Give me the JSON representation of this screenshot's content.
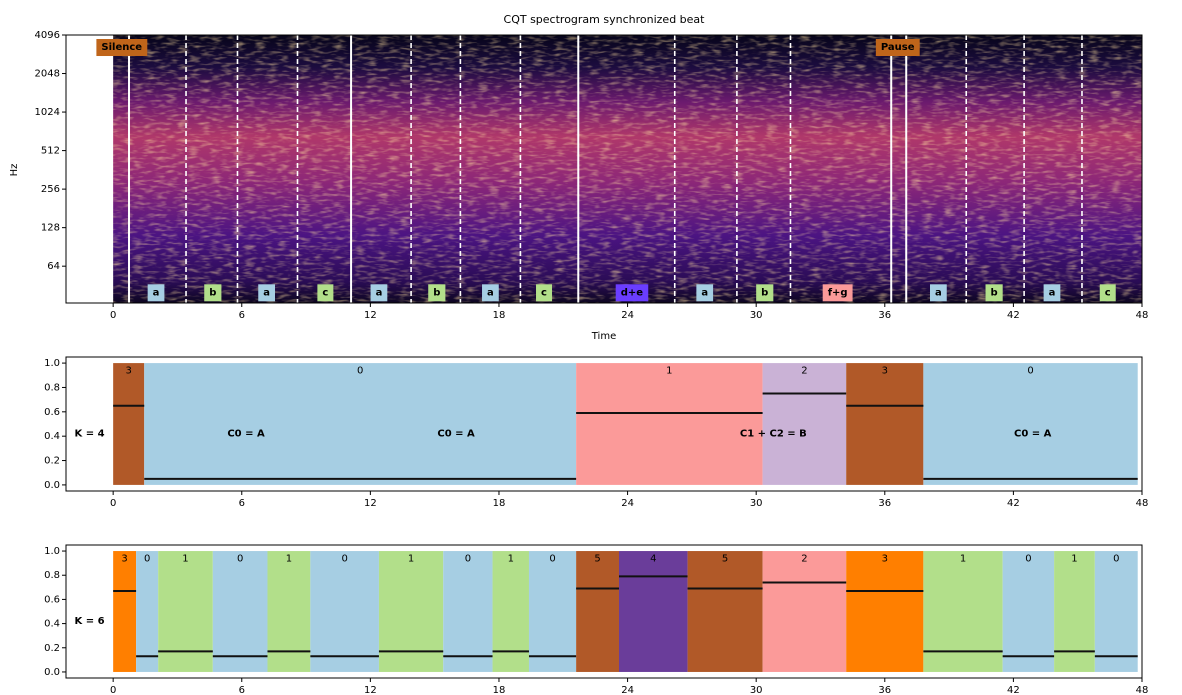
{
  "chart_data": [
    {
      "type": "spectrogram",
      "title": "CQT spectrogram synchronized beat",
      "xlabel": "Time",
      "ylabel": "Hz",
      "xlim": [
        -2.2,
        48.0
      ],
      "xticks": [
        0,
        6,
        12,
        18,
        24,
        30,
        36,
        42,
        48
      ],
      "ylim": [
        33,
        4096
      ],
      "yticks": [
        64,
        128,
        256,
        512,
        1024,
        2048,
        4096
      ],
      "log_scale_y": true,
      "solid_lines": [
        0.74,
        11.1,
        21.7,
        36.3,
        37.0
      ],
      "dashed_lines": [
        3.4,
        5.8,
        8.6,
        13.9,
        16.2,
        19.0,
        26.2,
        29.1,
        31.6,
        39.8,
        42.5,
        45.2
      ],
      "annotations": [
        {
          "text": "Silence",
          "x": 0.4,
          "y": 3300,
          "color": "#c0651a",
          "text_color": "#111111"
        },
        {
          "text": "Pause",
          "x": 36.6,
          "y": 3300,
          "color": "#c0651a",
          "text_color": "#111111"
        },
        {
          "text": "a",
          "x": 2.0,
          "y": 40,
          "color": "#a6cee3",
          "text_color": "#111111"
        },
        {
          "text": "b",
          "x": 4.65,
          "y": 40,
          "color": "#b2df8a",
          "text_color": "#111111"
        },
        {
          "text": "a",
          "x": 7.16,
          "y": 40,
          "color": "#a6cee3",
          "text_color": "#111111"
        },
        {
          "text": "c",
          "x": 9.9,
          "y": 40,
          "color": "#b2df8a",
          "text_color": "#111111"
        },
        {
          "text": "a",
          "x": 12.4,
          "y": 40,
          "color": "#a6cee3",
          "text_color": "#111111"
        },
        {
          "text": "b",
          "x": 15.1,
          "y": 40,
          "color": "#b2df8a",
          "text_color": "#111111"
        },
        {
          "text": "a",
          "x": 17.6,
          "y": 40,
          "color": "#a6cee3",
          "text_color": "#111111"
        },
        {
          "text": "c",
          "x": 20.1,
          "y": 40,
          "color": "#b2df8a",
          "text_color": "#111111"
        },
        {
          "text": "d+e",
          "x": 24.2,
          "y": 40,
          "color": "#6a3dff",
          "text_color": "#ffffff"
        },
        {
          "text": "a",
          "x": 27.6,
          "y": 40,
          "color": "#a6cee3",
          "text_color": "#111111"
        },
        {
          "text": "b",
          "x": 30.4,
          "y": 40,
          "color": "#b2df8a",
          "text_color": "#111111"
        },
        {
          "text": "f+g",
          "x": 33.8,
          "y": 40,
          "color": "#fb9a99",
          "text_color": "#111111"
        },
        {
          "text": "a",
          "x": 38.5,
          "y": 40,
          "color": "#a6cee3",
          "text_color": "#111111"
        },
        {
          "text": "b",
          "x": 41.1,
          "y": 40,
          "color": "#b2df8a",
          "text_color": "#111111"
        },
        {
          "text": "a",
          "x": 43.8,
          "y": 40,
          "color": "#a6cee3",
          "text_color": "#111111"
        },
        {
          "text": "c",
          "x": 46.4,
          "y": 40,
          "color": "#b2df8a",
          "text_color": "#111111"
        }
      ]
    },
    {
      "type": "segments",
      "xlim": [
        -2.2,
        48.0
      ],
      "xticks": [
        0,
        6,
        12,
        18,
        24,
        30,
        36,
        42,
        48
      ],
      "ylim": [
        -0.05,
        1.05
      ],
      "yticks": [
        {
          "value": 0,
          "label": "0.0"
        },
        {
          "value": 0.2,
          "label": "0.2"
        },
        {
          "value": 0.4,
          "label": "0.4"
        },
        {
          "value": 0.6,
          "label": "0.6"
        },
        {
          "value": 0.8,
          "label": "0.8"
        },
        {
          "value": 1,
          "label": "1.0"
        }
      ],
      "segments": [
        {
          "start": 0,
          "end": 1.45,
          "label": "3",
          "color": "#b15928",
          "level": 0.65
        },
        {
          "start": 1.45,
          "end": 21.6,
          "label": "0",
          "color": "#a6cee3",
          "level": 0.05
        },
        {
          "start": 21.6,
          "end": 30.3,
          "label": "1",
          "color": "#fb9a99",
          "level": 0.59
        },
        {
          "start": 30.3,
          "end": 34.2,
          "label": "2",
          "color": "#cab2d6",
          "level": 0.75
        },
        {
          "start": 34.2,
          "end": 37.8,
          "label": "3",
          "color": "#b15928",
          "level": 0.65
        },
        {
          "start": 37.8,
          "end": 47.8,
          "label": "0",
          "color": "#a6cee3",
          "level": 0.05
        }
      ],
      "annotations": [
        {
          "text": "K = 4",
          "x": -1.1,
          "y": 0.42
        },
        {
          "text": "C0 = A",
          "x": 6.2,
          "y": 0.42
        },
        {
          "text": "C0 = A",
          "x": 16.0,
          "y": 0.42
        },
        {
          "text": "C1 + C2 = B",
          "x": 30.8,
          "y": 0.42
        },
        {
          "text": "C0 = A",
          "x": 42.9,
          "y": 0.42
        }
      ]
    },
    {
      "type": "segments",
      "xlim": [
        -2.2,
        48.0
      ],
      "xticks": [
        0,
        6,
        12,
        18,
        24,
        30,
        36,
        42,
        48
      ],
      "ylim": [
        -0.05,
        1.05
      ],
      "yticks": [
        {
          "value": 0,
          "label": "0.0"
        },
        {
          "value": 0.2,
          "label": "0.2"
        },
        {
          "value": 0.4,
          "label": "0.4"
        },
        {
          "value": 0.6,
          "label": "0.6"
        },
        {
          "value": 0.8,
          "label": "0.8"
        },
        {
          "value": 1,
          "label": "1.0"
        }
      ],
      "segments": [
        {
          "start": 0,
          "end": 1.07,
          "label": "3",
          "color": "#ff7f00",
          "level": 0.67
        },
        {
          "start": 1.07,
          "end": 2.1,
          "label": "0",
          "color": "#a6cee3",
          "level": 0.13
        },
        {
          "start": 2.1,
          "end": 4.65,
          "label": "1",
          "color": "#b2df8a",
          "level": 0.17
        },
        {
          "start": 4.65,
          "end": 7.2,
          "label": "0",
          "color": "#a6cee3",
          "level": 0.13
        },
        {
          "start": 7.2,
          "end": 9.2,
          "label": "1",
          "color": "#b2df8a",
          "level": 0.17
        },
        {
          "start": 9.2,
          "end": 12.4,
          "label": "0",
          "color": "#a6cee3",
          "level": 0.13
        },
        {
          "start": 12.4,
          "end": 15.4,
          "label": "1",
          "color": "#b2df8a",
          "level": 0.17
        },
        {
          "start": 15.4,
          "end": 17.7,
          "label": "0",
          "color": "#a6cee3",
          "level": 0.13
        },
        {
          "start": 17.7,
          "end": 19.4,
          "label": "1",
          "color": "#b2df8a",
          "level": 0.17
        },
        {
          "start": 19.4,
          "end": 21.6,
          "label": "0",
          "color": "#a6cee3",
          "level": 0.13
        },
        {
          "start": 21.6,
          "end": 23.6,
          "label": "5",
          "color": "#b15928",
          "level": 0.69
        },
        {
          "start": 23.6,
          "end": 26.8,
          "label": "4",
          "color": "#6a3d9a",
          "level": 0.79
        },
        {
          "start": 26.8,
          "end": 30.3,
          "label": "5",
          "color": "#b15928",
          "level": 0.69
        },
        {
          "start": 30.3,
          "end": 34.2,
          "label": "2",
          "color": "#fb9a99",
          "level": 0.74
        },
        {
          "start": 34.2,
          "end": 37.8,
          "label": "3",
          "color": "#ff7f00",
          "level": 0.67
        },
        {
          "start": 37.8,
          "end": 41.5,
          "label": "1",
          "color": "#b2df8a",
          "level": 0.17
        },
        {
          "start": 41.5,
          "end": 43.9,
          "label": "0",
          "color": "#a6cee3",
          "level": 0.13
        },
        {
          "start": 43.9,
          "end": 45.8,
          "label": "1",
          "color": "#b2df8a",
          "level": 0.17
        },
        {
          "start": 45.8,
          "end": 47.8,
          "label": "0",
          "color": "#a6cee3",
          "level": 0.13
        }
      ],
      "annotations": [
        {
          "text": "K = 6",
          "x": -1.1,
          "y": 0.42
        }
      ]
    }
  ]
}
